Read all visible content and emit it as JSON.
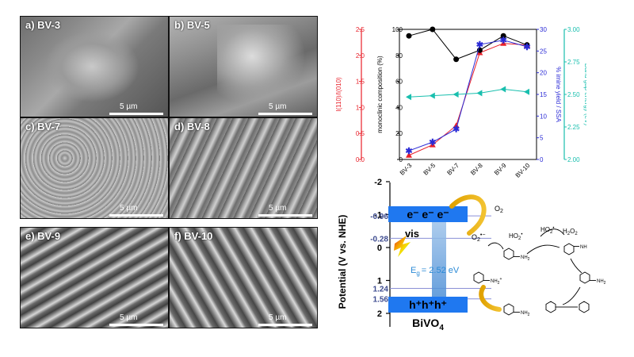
{
  "sem_panels": [
    {
      "label": "a) BV-3",
      "scale": "5 µm"
    },
    {
      "label": "b) BV-5",
      "scale": "5 µm"
    },
    {
      "label": "c) BV-7",
      "scale": "5 µm"
    },
    {
      "label": "d) BV-8",
      "scale": "5 µm"
    },
    {
      "label": "e) BV-9",
      "scale": "5 µm"
    },
    {
      "label": "f) BV-10",
      "scale": "5 µm"
    }
  ],
  "chart_data": {
    "type": "line",
    "categories": [
      "BV-3",
      "BV-5",
      "BV-7",
      "BV-8",
      "BV-9",
      "BV-10"
    ],
    "axes": {
      "ratio": {
        "label": "I(110)/I(010)",
        "range": [
          0,
          2.5
        ],
        "ticks": [
          "0.0",
          "0.5",
          "1.0",
          "1.5",
          "2.0",
          "2.5"
        ],
        "color": "#e8202a"
      },
      "monoclinic": {
        "label": "monoclinic composition (%)",
        "range": [
          0,
          100
        ],
        "ticks": [
          "0",
          "20",
          "40",
          "60",
          "80",
          "100"
        ],
        "color": "#000000"
      },
      "imine": {
        "label": "% imine yield / SSA",
        "range": [
          0,
          30
        ],
        "ticks": [
          "0",
          "5",
          "10",
          "15",
          "20",
          "25",
          "30"
        ],
        "color": "#2b2bd6"
      },
      "bandgap": {
        "label": "Band gap energy (eV)",
        "range": [
          2.0,
          3.0
        ],
        "ticks": [
          "2.00",
          "2.25",
          "2.50",
          "2.75",
          "3.00"
        ],
        "color": "#19bfae"
      }
    },
    "series": [
      {
        "values": [
          0.08,
          0.28,
          0.65,
          2.05,
          2.23,
          2.2
        ],
        "axis": "ratio",
        "color": "#e8202a",
        "marker": "triangle-up"
      },
      {
        "values": [
          95,
          100,
          77,
          84,
          95,
          88
        ],
        "axis": "monoclinic",
        "color": "#000000",
        "marker": "circle"
      },
      {
        "values": [
          2,
          4,
          7,
          26.5,
          27.5,
          26
        ],
        "axis": "imine",
        "color": "#2b2bd6",
        "marker": "star"
      },
      {
        "values": [
          2.48,
          2.49,
          2.5,
          2.51,
          2.54,
          2.52
        ],
        "axis": "bandgap",
        "color": "#19bfae",
        "marker": "triangle-left"
      }
    ]
  },
  "energy_diagram": {
    "y_axis_label": "Potential (V vs. NHE)",
    "ticks": [
      "-2",
      "-1",
      "0",
      "1",
      "2"
    ],
    "tick_values": [
      -2,
      -1,
      0,
      1,
      2
    ],
    "levels": [
      {
        "label": "-0.96",
        "value": -0.96
      },
      {
        "label": "-0.28",
        "value": -0.28
      },
      {
        "label": "1.24",
        "value": 1.24
      },
      {
        "label": "1.56",
        "value": 1.56
      }
    ],
    "cb_text": "e⁻ e⁻ e⁻",
    "vb_text": "h⁺h⁺h⁺",
    "material": "BiVO",
    "material_sub": "4",
    "excitation": "vis",
    "gap_text": "= 2.52 eV",
    "gap_symbol": "E",
    "gap_symbol_sub": "g",
    "o2": "O",
    "o2_sub": "2",
    "superoxide": "O",
    "superoxide_sub": "2",
    "superoxide_sup": "•−",
    "ho2": "HO",
    "ho2_sub": "2",
    "ho2_sup": "•",
    "h2o2": "H",
    "h2o2_mid": "O",
    "h2o2_sub": "2",
    "nh2": "NH",
    "nh2_sub": "2",
    "nh": "NH",
    "cation": "NH",
    "cation_sub": "2",
    "cation_sup": "+"
  }
}
